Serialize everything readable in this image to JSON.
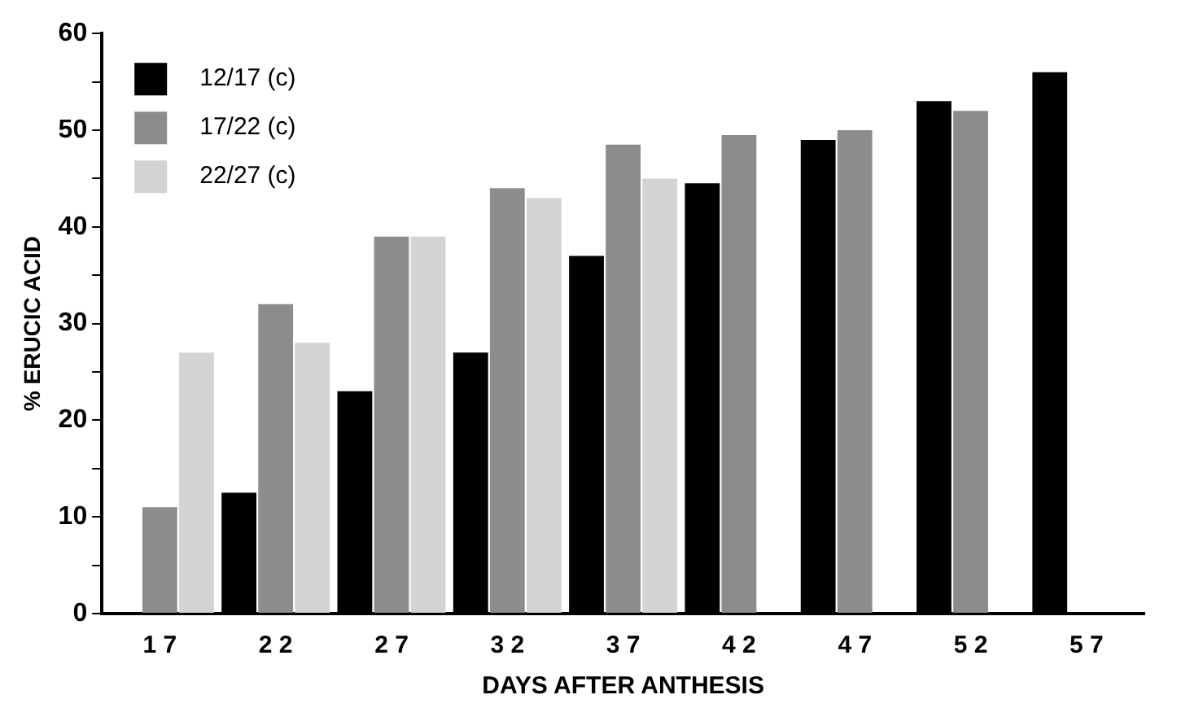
{
  "chart_data": {
    "type": "bar",
    "xlabel": "DAYS AFTER ANTHESIS",
    "ylabel": "% ERUCIC ACID",
    "categories": [
      "1 7",
      "2 2",
      "2 7",
      "3 2",
      "3 7",
      "4 2",
      "4 7",
      "5 2",
      "5 7"
    ],
    "series": [
      {
        "name": "12/17 (c)",
        "color": "#000000",
        "values": [
          null,
          12.5,
          23,
          27,
          37,
          44.5,
          49,
          53,
          56
        ]
      },
      {
        "name": "17/22 (c)",
        "color": "#8c8c8c",
        "values": [
          11,
          32,
          39,
          44,
          48.5,
          49.5,
          50,
          52,
          null
        ]
      },
      {
        "name": "22/27 (c)",
        "color": "#d4d4d4",
        "values": [
          27,
          28,
          39,
          43,
          45,
          null,
          null,
          null,
          null
        ]
      }
    ],
    "ylim": [
      0,
      60
    ],
    "yticks": [
      0,
      {
        "value": 5,
        "label": null
      },
      10,
      {
        "value": 15,
        "label": null
      },
      20,
      {
        "value": 25,
        "label": null
      },
      30,
      {
        "value": 35,
        "label": null
      },
      40,
      {
        "value": 45,
        "label": null
      },
      50,
      {
        "value": 55,
        "label": null
      },
      60
    ],
    "grid": false,
    "legend": "top left"
  }
}
